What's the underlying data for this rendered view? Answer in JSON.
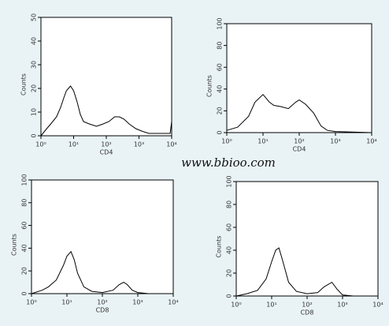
{
  "watermark": "www.bbioo.com",
  "chart_data": [
    {
      "type": "line",
      "xlabel": "CD4",
      "ylabel": "Counts",
      "log_x": true,
      "color": "#000000",
      "x": [
        1,
        1.5,
        2,
        3,
        4,
        5,
        6,
        8,
        10,
        13,
        16,
        20,
        30,
        50,
        80,
        120,
        180,
        250,
        350,
        500,
        800,
        1200,
        2000,
        5000,
        9000,
        10000
      ],
      "values": [
        0,
        3,
        5,
        8,
        12,
        16,
        19,
        21,
        19,
        14,
        9,
        6,
        5,
        4,
        5,
        6,
        8,
        8,
        7,
        5,
        3,
        2,
        1,
        1,
        1,
        6
      ],
      "xlim": [
        1,
        10000
      ],
      "xticks": [
        {
          "value": 1,
          "label": "10⁰"
        },
        {
          "value": 10,
          "label": "10¹"
        },
        {
          "value": 100,
          "label": "10²"
        },
        {
          "value": 1000,
          "label": "10³"
        },
        {
          "value": 10000,
          "label": "10⁴"
        }
      ],
      "ylim": [
        0,
        50
      ],
      "yticks": [
        0,
        10,
        20,
        30,
        40,
        50
      ]
    },
    {
      "type": "line",
      "xlabel": "CD4",
      "ylabel": "Counts",
      "log_x": true,
      "color": "#000000",
      "x": [
        1,
        2,
        4,
        6,
        10,
        15,
        20,
        30,
        50,
        80,
        100,
        150,
        250,
        400,
        600,
        1000,
        10000
      ],
      "values": [
        2,
        5,
        15,
        28,
        35,
        28,
        25,
        24,
        22,
        28,
        30,
        26,
        18,
        6,
        2,
        1,
        0
      ],
      "xlim": [
        1,
        10000
      ],
      "xticks": [
        {
          "value": 1,
          "label": "10⁰"
        },
        {
          "value": 10,
          "label": "10¹"
        },
        {
          "value": 100,
          "label": "10²"
        },
        {
          "value": 1000,
          "label": "10³"
        },
        {
          "value": 10000,
          "label": "10⁴"
        }
      ],
      "ylim": [
        0,
        100
      ],
      "yticks": [
        0,
        20,
        40,
        60,
        80,
        100
      ]
    },
    {
      "type": "line",
      "xlabel": "CD8",
      "ylabel": "Counts",
      "log_x": true,
      "color": "#000000",
      "x": [
        1,
        2,
        3,
        5,
        8,
        10,
        13,
        16,
        20,
        30,
        50,
        100,
        200,
        300,
        400,
        500,
        700,
        1000,
        2000,
        10000
      ],
      "values": [
        0,
        3,
        6,
        12,
        25,
        33,
        37,
        30,
        18,
        6,
        2,
        1,
        3,
        8,
        10,
        8,
        3,
        1,
        0,
        0
      ],
      "xlim": [
        1,
        10000
      ],
      "xticks": [
        {
          "value": 1,
          "label": "10⁰"
        },
        {
          "value": 10,
          "label": "10¹"
        },
        {
          "value": 100,
          "label": "10²"
        },
        {
          "value": 1000,
          "label": "10³"
        },
        {
          "value": 10000,
          "label": "10⁴"
        }
      ],
      "ylim": [
        0,
        100
      ],
      "yticks": [
        0,
        20,
        40,
        60,
        80,
        100
      ]
    },
    {
      "type": "line",
      "xlabel": "CD8",
      "ylabel": "Counts",
      "log_x": true,
      "color": "#000000",
      "x": [
        1,
        2,
        4,
        7,
        10,
        13,
        16,
        20,
        30,
        50,
        100,
        200,
        300,
        500,
        700,
        1000,
        2000,
        10000
      ],
      "values": [
        0,
        2,
        5,
        15,
        30,
        40,
        42,
        32,
        12,
        4,
        2,
        3,
        8,
        12,
        6,
        1,
        0,
        0
      ],
      "xlim": [
        1,
        10000
      ],
      "xticks": [
        {
          "value": 1,
          "label": "10⁰"
        },
        {
          "value": 10,
          "label": "10¹"
        },
        {
          "value": 100,
          "label": "10²"
        },
        {
          "value": 1000,
          "label": "10³"
        },
        {
          "value": 10000,
          "label": "10⁴"
        }
      ],
      "ylim": [
        0,
        100
      ],
      "yticks": [
        0,
        20,
        40,
        60,
        80,
        100
      ]
    }
  ]
}
